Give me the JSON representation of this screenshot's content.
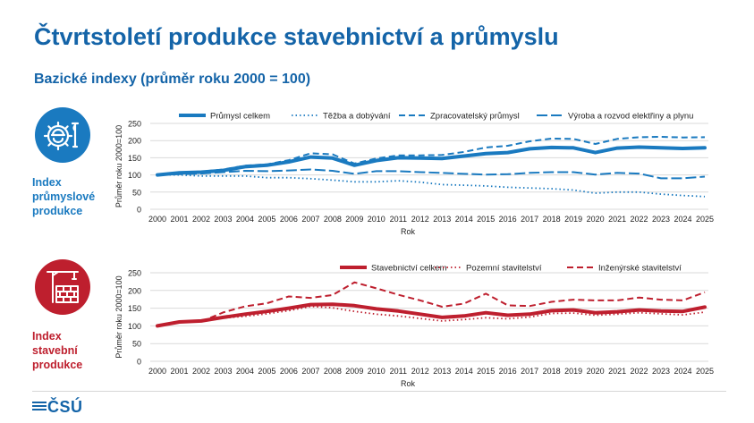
{
  "page": {
    "title": "Čtvrtstoletí produkce stavebnictví a průmyslu",
    "subtitle": "Bazické indexy (průměr roku 2000 = 100)",
    "logo_text": "ČSÚ"
  },
  "colors": {
    "title": "#1464a8",
    "industry": "#1a7ac0",
    "construction": "#be1f2e",
    "grid": "#d9d9d9",
    "axis_text": "#222222"
  },
  "icons": {
    "industry": "gear-worker-icon",
    "construction": "crane-brick-wall-icon",
    "logo": "csu-logo-icon"
  },
  "panels": {
    "industry": {
      "label_lines": [
        "Index",
        "průmyslové",
        "produkce"
      ]
    },
    "construction": {
      "label_lines": [
        "Index",
        "stavební",
        "produkce"
      ]
    }
  },
  "chart_data": [
    {
      "type": "line",
      "id": "industry",
      "title": "Index průmyslové produkce",
      "xlabel": "Rok",
      "ylabel": "Průměr roku 2000=100",
      "ylim": [
        0,
        250
      ],
      "yticks": [
        0,
        50,
        100,
        150,
        200,
        250
      ],
      "grid": true,
      "legend_position": "top",
      "categories": [
        "2000",
        "2001",
        "2002",
        "2003",
        "2004",
        "2005",
        "2006",
        "2007",
        "2008",
        "2009",
        "2010",
        "2011",
        "2012",
        "2013",
        "2014",
        "2015",
        "2016",
        "2017",
        "2018",
        "2019",
        "2020",
        "2021",
        "2022",
        "2023",
        "2024",
        "2025"
      ],
      "series": [
        {
          "name": "Průmysl celkem",
          "style": "solid-thick",
          "values": [
            100,
            106,
            108,
            113,
            124,
            128,
            138,
            152,
            149,
            128,
            142,
            150,
            149,
            148,
            155,
            162,
            165,
            176,
            180,
            179,
            165,
            178,
            181,
            179,
            177,
            179
          ]
        },
        {
          "name": "Těžba a dobývání",
          "style": "dotted",
          "values": [
            100,
            100,
            97,
            97,
            97,
            92,
            92,
            89,
            85,
            80,
            80,
            83,
            79,
            72,
            70,
            68,
            64,
            62,
            60,
            56,
            47,
            50,
            50,
            44,
            40,
            37
          ]
        },
        {
          "name": "Zpracovatelský průmysl",
          "style": "dashed",
          "values": [
            100,
            107,
            110,
            116,
            127,
            131,
            143,
            163,
            160,
            133,
            148,
            157,
            157,
            158,
            167,
            180,
            185,
            198,
            206,
            205,
            190,
            205,
            210,
            211,
            209,
            210
          ]
        },
        {
          "name": "Výroba a rozvod elektřiny a plynu",
          "style": "long-dash",
          "values": [
            100,
            102,
            104,
            108,
            112,
            111,
            113,
            116,
            112,
            103,
            111,
            111,
            108,
            106,
            103,
            101,
            102,
            106,
            108,
            108,
            101,
            106,
            104,
            90,
            90,
            95
          ]
        }
      ]
    },
    {
      "type": "line",
      "id": "construction",
      "title": "Index stavební produkce",
      "xlabel": "Rok",
      "ylabel": "Průměr roku 2000=100",
      "ylim": [
        0,
        250
      ],
      "yticks": [
        0,
        50,
        100,
        150,
        200,
        250
      ],
      "grid": true,
      "legend_position": "top",
      "categories": [
        "2000",
        "2001",
        "2002",
        "2003",
        "2004",
        "2005",
        "2006",
        "2007",
        "2008",
        "2009",
        "2010",
        "2011",
        "2012",
        "2013",
        "2014",
        "2015",
        "2016",
        "2017",
        "2018",
        "2019",
        "2020",
        "2021",
        "2022",
        "2023",
        "2024",
        "2025"
      ],
      "series": [
        {
          "name": "Stavebnictví celkem",
          "style": "solid-thick",
          "values": [
            100,
            111,
            114,
            124,
            133,
            141,
            150,
            160,
            161,
            157,
            148,
            142,
            133,
            124,
            128,
            137,
            130,
            133,
            143,
            145,
            137,
            140,
            145,
            142,
            141,
            153
          ]
        },
        {
          "name": "Pozemní stavitelství",
          "style": "dotted",
          "values": [
            100,
            111,
            112,
            122,
            127,
            134,
            143,
            155,
            151,
            141,
            133,
            128,
            121,
            114,
            118,
            123,
            120,
            125,
            135,
            136,
            130,
            133,
            137,
            134,
            131,
            139
          ]
        },
        {
          "name": "Inženýrské stavitelství",
          "style": "dashed",
          "values": [
            null,
            null,
            112,
            138,
            155,
            164,
            183,
            179,
            187,
            223,
            206,
            188,
            172,
            154,
            163,
            191,
            158,
            156,
            168,
            174,
            172,
            172,
            180,
            174,
            172,
            195
          ]
        }
      ]
    }
  ]
}
